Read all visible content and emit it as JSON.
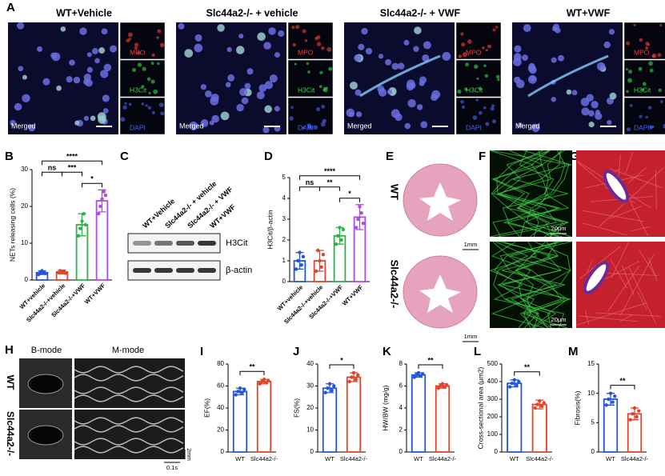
{
  "panel_A": {
    "label": "A",
    "groups": [
      "WT+Vehicle",
      "Slc44a2-/- + vehicle",
      "Slc44a2-/- + VWF",
      "WT+VWF"
    ],
    "channels": [
      "MPO",
      "H3Cit",
      "DAPI"
    ],
    "merged": "Merged"
  },
  "panel_C": {
    "label": "C",
    "lanes": [
      "WT+Vehicle",
      "Slc44a2-/- + vehicle",
      "Slc44a2-/- + VWF",
      "WT+VWF"
    ],
    "bands": [
      "H3Cit",
      "β-actin"
    ]
  },
  "panel_E": {
    "label": "E",
    "rows": [
      "WT",
      "Slc44a2-/-"
    ],
    "scale": "1mm"
  },
  "panel_F": {
    "label": "F",
    "scale": "20μm"
  },
  "panel_G": {
    "label": "G"
  },
  "panel_H": {
    "label": "H",
    "modes": [
      "B-mode",
      "M-mode"
    ],
    "rows": [
      "WT",
      "Slc44a2-/-"
    ],
    "scale_y": "2mm",
    "scale_x": "0.1s"
  },
  "chart_data": [
    {
      "label": "B",
      "type": "bar",
      "ylabel": "NETs releasing cells (%)",
      "categories": [
        "WT+vehicle",
        "Slc44a2-/-+vehicle",
        "Slc44a2-/-+VWF",
        "WT+VWF"
      ],
      "colors": [
        "#2255d8",
        "#e0442a",
        "#2bb34a",
        "#b04ae0"
      ],
      "values": [
        2.0,
        2.2,
        15,
        21.5
      ],
      "errors": [
        0.5,
        0.5,
        3,
        3
      ],
      "points": [
        [
          1.5,
          2,
          2.5,
          2,
          1.8
        ],
        [
          2,
          2.5,
          2,
          2.3,
          1.9
        ],
        [
          12,
          14,
          16,
          18,
          15
        ],
        [
          18,
          20,
          22,
          24,
          23
        ]
      ],
      "ylim": [
        0,
        30
      ],
      "yticks": [
        0,
        10,
        20,
        30
      ],
      "significance": [
        "ns",
        "***",
        "*",
        "****"
      ]
    },
    {
      "label": "D",
      "type": "bar",
      "ylabel": "H3Cit/β-actin",
      "categories": [
        "WT+vehicle",
        "Slc44a2-/-+vehicle",
        "Slc44a2-/-+VWF",
        "WT+VWF"
      ],
      "colors": [
        "#2255d8",
        "#e0442a",
        "#2bb34a",
        "#b04ae0"
      ],
      "values": [
        1.0,
        1.0,
        2.2,
        3.1
      ],
      "errors": [
        0.4,
        0.5,
        0.4,
        0.6
      ],
      "points": [
        [
          0.6,
          1.0,
          1.4,
          0.8,
          1.2
        ],
        [
          0.5,
          1.5,
          1.0,
          0.7,
          1.3
        ],
        [
          1.8,
          2.2,
          2.6,
          2.0,
          2.5
        ],
        [
          2.6,
          3.0,
          3.6,
          3.3,
          2.8
        ]
      ],
      "ylim": [
        0,
        5
      ],
      "yticks": [
        0,
        1,
        2,
        3,
        4,
        5
      ],
      "significance": [
        "ns",
        "**",
        "*",
        "****"
      ]
    },
    {
      "label": "I",
      "type": "bar",
      "ylabel": "EF(%)",
      "categories": [
        "WT",
        "Slc44a2-/-"
      ],
      "colors": [
        "#2255d8",
        "#e0442a"
      ],
      "values": [
        55,
        64
      ],
      "errors": [
        3,
        2
      ],
      "points": [
        [
          52,
          55,
          58,
          54,
          57
        ],
        [
          62,
          64,
          66,
          63,
          65
        ]
      ],
      "ylim": [
        0,
        80
      ],
      "yticks": [
        0,
        20,
        40,
        60,
        80
      ],
      "significance": [
        "**"
      ]
    },
    {
      "label": "J",
      "type": "bar",
      "ylabel": "FS(%)",
      "categories": [
        "WT",
        "Slc44a2-/-"
      ],
      "colors": [
        "#2255d8",
        "#e0442a"
      ],
      "values": [
        29,
        34
      ],
      "errors": [
        2,
        2
      ],
      "points": [
        [
          27,
          29,
          31,
          28,
          30
        ],
        [
          32,
          34,
          36,
          33,
          35
        ]
      ],
      "ylim": [
        0,
        40
      ],
      "yticks": [
        0,
        10,
        20,
        30,
        40
      ],
      "significance": [
        "*"
      ]
    },
    {
      "label": "K",
      "type": "bar",
      "ylabel": "HW/BW (mg/g)",
      "categories": [
        "WT",
        "Slc44a2-/-"
      ],
      "colors": [
        "#2255d8",
        "#e0442a"
      ],
      "values": [
        7.0,
        6.0
      ],
      "errors": [
        0.2,
        0.2
      ],
      "points": [
        [
          6.8,
          7.0,
          7.2,
          6.9,
          7.1
        ],
        [
          5.8,
          6.0,
          6.2,
          5.9,
          6.1
        ]
      ],
      "ylim": [
        0,
        8
      ],
      "yticks": [
        0,
        2,
        4,
        6,
        8
      ],
      "significance": [
        "**"
      ]
    },
    {
      "label": "L",
      "type": "bar",
      "ylabel": "Cross-sectional area (μm2)",
      "categories": [
        "WT",
        "Slc44a2-/-"
      ],
      "colors": [
        "#2255d8",
        "#e0442a"
      ],
      "values": [
        390,
        270
      ],
      "errors": [
        20,
        25
      ],
      "points": [
        [
          370,
          390,
          410,
          380,
          400
        ],
        [
          250,
          270,
          290,
          260,
          280
        ]
      ],
      "ylim": [
        0,
        500
      ],
      "yticks": [
        0,
        100,
        200,
        300,
        400,
        500
      ],
      "significance": [
        "**"
      ]
    },
    {
      "label": "M",
      "type": "bar",
      "ylabel": "Fibrosis(%)",
      "categories": [
        "WT",
        "Slc44a2-/-"
      ],
      "colors": [
        "#2255d8",
        "#e0442a"
      ],
      "values": [
        9,
        6.5
      ],
      "errors": [
        1,
        1
      ],
      "points": [
        [
          8,
          9,
          10,
          8.5,
          9.5
        ],
        [
          5.5,
          6.5,
          7.5,
          6,
          7
        ]
      ],
      "ylim": [
        0,
        15
      ],
      "yticks": [
        0,
        5,
        10,
        15
      ],
      "significance": [
        "**"
      ]
    }
  ]
}
